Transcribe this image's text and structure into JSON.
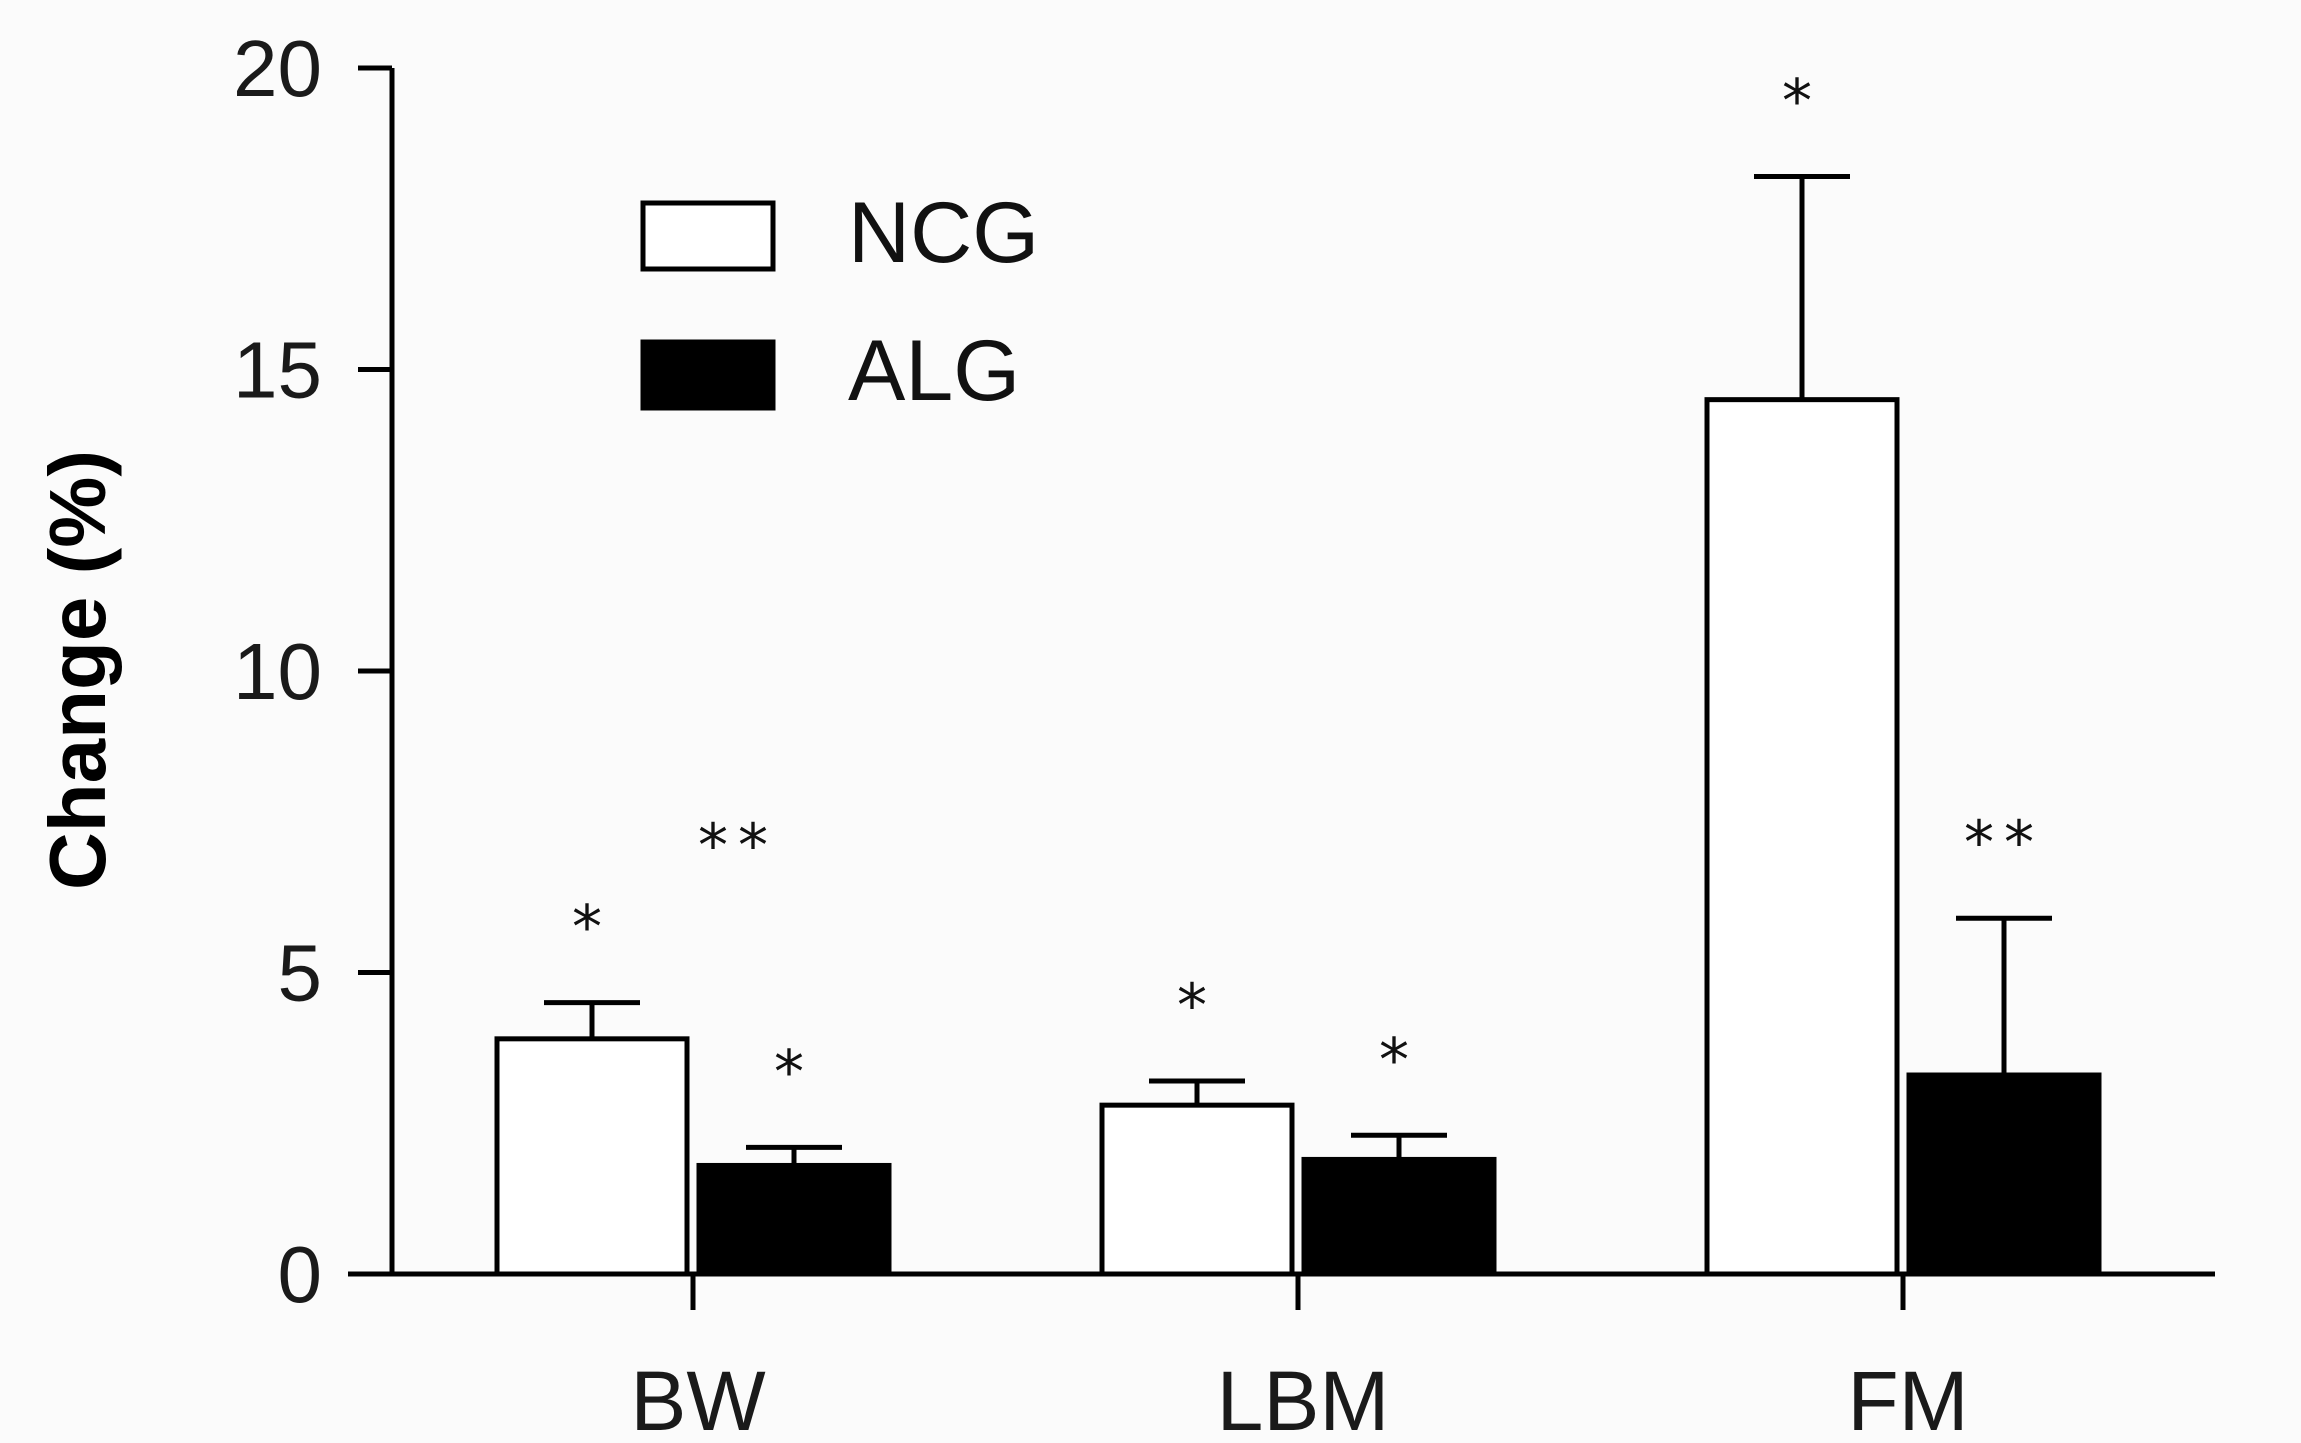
{
  "chart_data": {
    "type": "bar",
    "title": "",
    "xlabel": "",
    "ylabel": "Change (%)",
    "ylim": [
      0,
      20
    ],
    "yticks": [
      0,
      5,
      10,
      15,
      20
    ],
    "categories": [
      "BW",
      "LBM",
      "FM"
    ],
    "series": [
      {
        "name": "NCG",
        "fill": "#ffffff",
        "values": [
          3.9,
          2.8,
          14.5
        ],
        "errors": [
          0.6,
          0.4,
          3.7
        ],
        "annotations": [
          "*",
          "*",
          "*"
        ]
      },
      {
        "name": "ALG",
        "fill": "#000000",
        "values": [
          1.8,
          1.9,
          3.3
        ],
        "errors": [
          0.3,
          0.4,
          2.6
        ],
        "annotations": [
          "*",
          "*",
          "**"
        ]
      }
    ],
    "extra_annotations": [
      {
        "category": "BW",
        "text": "**"
      }
    ],
    "legend": {
      "position": "top-left"
    },
    "grid": false
  }
}
